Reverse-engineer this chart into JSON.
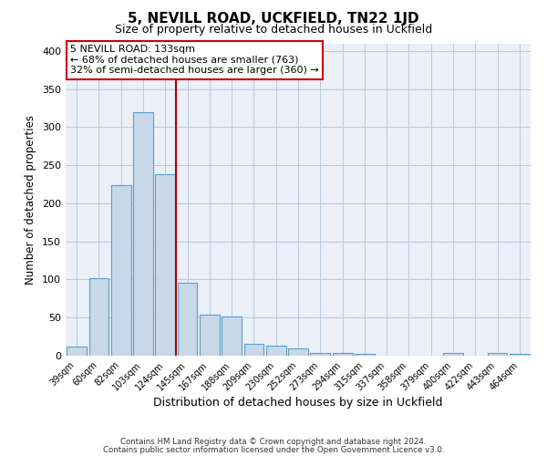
{
  "title": "5, NEVILL ROAD, UCKFIELD, TN22 1JD",
  "subtitle": "Size of property relative to detached houses in Uckfield",
  "xlabel": "Distribution of detached houses by size in Uckfield",
  "ylabel": "Number of detached properties",
  "bar_labels": [
    "39sqm",
    "60sqm",
    "82sqm",
    "103sqm",
    "124sqm",
    "145sqm",
    "167sqm",
    "188sqm",
    "209sqm",
    "230sqm",
    "252sqm",
    "273sqm",
    "294sqm",
    "315sqm",
    "337sqm",
    "358sqm",
    "379sqm",
    "400sqm",
    "422sqm",
    "443sqm",
    "464sqm"
  ],
  "bar_values": [
    12,
    102,
    224,
    320,
    238,
    96,
    54,
    51,
    16,
    13,
    9,
    4,
    3,
    2,
    0,
    0,
    0,
    4,
    0,
    3,
    2
  ],
  "bar_color": "#c8d8e8",
  "bar_edgecolor": "#5a9ec9",
  "ylim": [
    0,
    410
  ],
  "yticks": [
    0,
    50,
    100,
    150,
    200,
    250,
    300,
    350,
    400
  ],
  "vline_x": 4.5,
  "vline_color": "#aa0000",
  "annotation_title": "5 NEVILL ROAD: 133sqm",
  "annotation_line1": "← 68% of detached houses are smaller (763)",
  "annotation_line2": "32% of semi-detached houses are larger (360) →",
  "annotation_box_edgecolor": "#cc0000",
  "footer_line1": "Contains HM Land Registry data © Crown copyright and database right 2024.",
  "footer_line2": "Contains public sector information licensed under the Open Government Licence v3.0.",
  "background_color": "#ffffff",
  "axes_facecolor": "#eaeff8",
  "grid_color": "#b8c8dc"
}
